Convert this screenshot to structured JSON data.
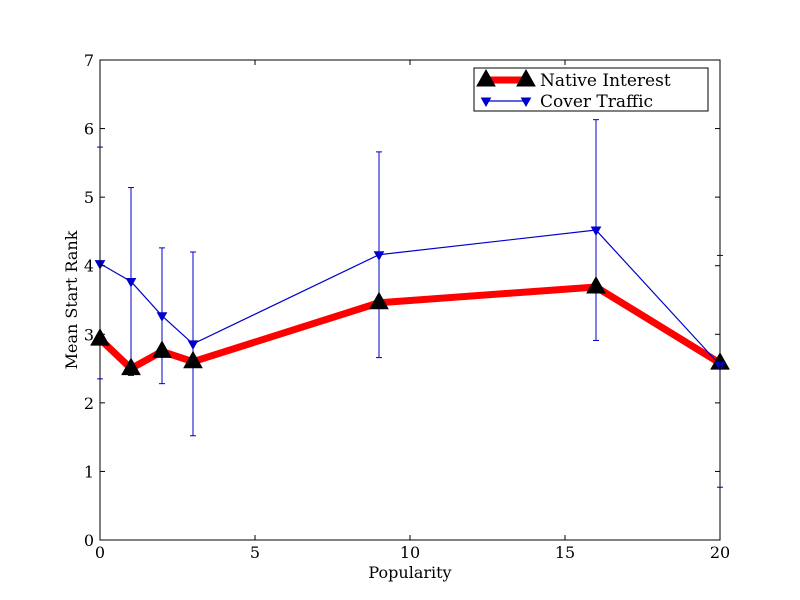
{
  "chart_data": {
    "type": "line",
    "title": "",
    "xlabel": "Popularity",
    "ylabel": "Mean Start Rank",
    "xlim": [
      0,
      20
    ],
    "ylim": [
      0,
      7
    ],
    "xticks": [
      0,
      5,
      10,
      15,
      20
    ],
    "yticks": [
      0,
      1,
      2,
      3,
      4,
      5,
      6,
      7
    ],
    "xtick_labels": [
      "0",
      "5",
      "10",
      "15",
      "20"
    ],
    "ytick_labels": [
      "0",
      "1",
      "2",
      "3",
      "4",
      "5",
      "6",
      "7"
    ],
    "grid": false,
    "legend_position": "top-right",
    "series": [
      {
        "name": "Native Interest",
        "color": "#ff0000",
        "marker": "triangle-up",
        "marker_color": "#000000",
        "x": [
          0,
          1,
          2,
          3,
          9,
          16,
          20
        ],
        "y": [
          2.93,
          2.5,
          2.75,
          2.6,
          3.46,
          3.69,
          2.58
        ]
      },
      {
        "name": "Cover Traffic",
        "color": "#0000cc",
        "marker": "triangle-down",
        "marker_color": "#0000cc",
        "x": [
          0,
          1,
          2,
          3,
          9,
          16,
          20
        ],
        "y": [
          4.03,
          3.77,
          3.27,
          2.86,
          4.16,
          4.52,
          2.55
        ],
        "error_low": [
          2.35,
          2.4,
          2.28,
          1.52,
          2.66,
          2.91,
          0.77
        ],
        "error_high": [
          5.73,
          5.14,
          4.26,
          4.2,
          5.66,
          6.13,
          4.15
        ]
      }
    ]
  }
}
